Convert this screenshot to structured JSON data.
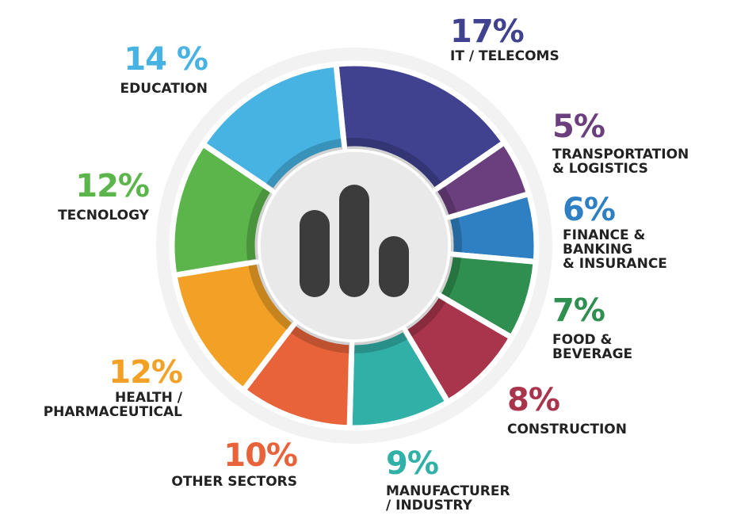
{
  "chart_data": {
    "type": "donut",
    "categories": [
      "IT / TELECOMS",
      "TRANSPORTATION\n& LOGISTICS",
      "FINANCE &\nBANKING\n& INSURANCE",
      "FOOD &\nBEVERAGE",
      "CONSTRUCTION",
      "MANUFACTURER\n/ INDUSTRY",
      "OTHER SECTORS",
      "HEALTH /\nPHARMACEUTICAL",
      "TECNOLOGY",
      "EDUCATION"
    ],
    "values": [
      17,
      5,
      6,
      7,
      8,
      9,
      10,
      12,
      12,
      14
    ],
    "value_labels": [
      "17%",
      "5%",
      "6%",
      "7%",
      "8%",
      "9%",
      "10%",
      "12%",
      "12%",
      "14 %"
    ],
    "colors": [
      "#40418f",
      "#6b3f7e",
      "#2f80c2",
      "#2f8f50",
      "#a8354b",
      "#31b0a8",
      "#e8633a",
      "#f2a126",
      "#5bb54b",
      "#46b3e3"
    ]
  }
}
